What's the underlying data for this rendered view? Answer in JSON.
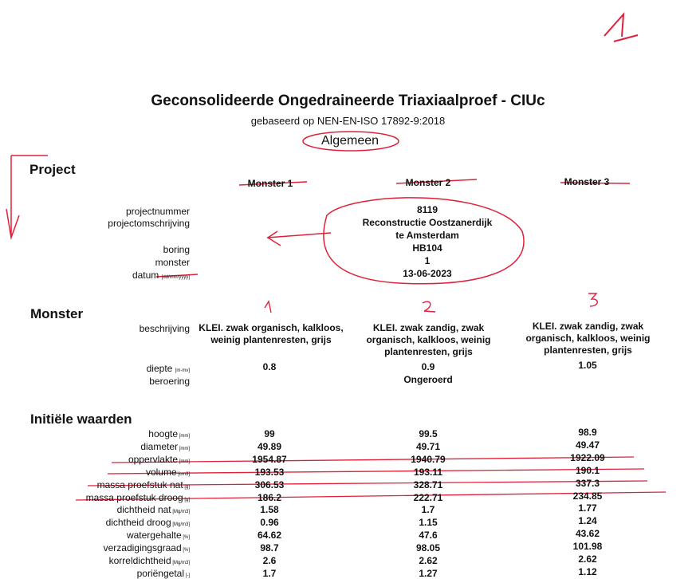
{
  "page_number_handwritten": "1",
  "title": "Geconsolideerde Ongedraineerde Triaxiaalproef - CIUc",
  "subtitle": "gebaseerd op NEN-EN-ISO 17892-9:2018",
  "section_label": "Algemeen",
  "project": {
    "heading": "Project",
    "columns": [
      "Monster 1",
      "Monster 2",
      "Monster 3"
    ],
    "labels": {
      "projectnummer": "projectnummer",
      "projectomschrijving": "projectomschrijving",
      "boring": "boring",
      "monster": "monster",
      "datum": "datum",
      "datum_unit": "[dd/mm/yyyy]"
    },
    "values": {
      "projectnummer": "8119",
      "omschrijving_1": "Reconstructie Oostzanerdijk",
      "omschrijving_2": "te Amsterdam",
      "boring": "HB104",
      "monster": "1",
      "datum": "13-06-2023"
    }
  },
  "monster": {
    "heading": "Monster",
    "handwritten_numbers": [
      "1",
      "2",
      "3"
    ],
    "labels": {
      "beschrijving": "beschrijving",
      "diepte": "diepte",
      "diepte_unit": "[m-mv]",
      "beroering": "beroering"
    },
    "descriptions": [
      "KLEI. zwak organisch, kalkloos, weinig plantenresten, grijs",
      "KLEI. zwak zandig, zwak organisch, kalkloos, weinig plantenresten, grijs",
      "KLEI. zwak zandig, zwak organisch, kalkloos, weinig plantenresten, grijs"
    ],
    "diepte": [
      "0.8",
      "0.9",
      "1.05"
    ],
    "beroering": "Ongeroerd"
  },
  "initiele": {
    "heading": "Initiële waarden",
    "rows": [
      {
        "label": "hoogte",
        "unit": "[mm]",
        "values": [
          "99",
          "99.5",
          "98.9"
        ]
      },
      {
        "label": "diameter",
        "unit": "[mm]",
        "values": [
          "49.89",
          "49.71",
          "49.47"
        ]
      },
      {
        "label": "oppervlakte",
        "unit": "[mm]",
        "values": [
          "1954.87",
          "1940.79",
          "1922.09"
        ]
      },
      {
        "label": "volume",
        "unit": "[cm3]",
        "values": [
          "193.53",
          "193.11",
          "190.1"
        ]
      },
      {
        "label": "massa proefstuk nat",
        "unit": "[g]",
        "values": [
          "306.53",
          "328.71",
          "337.3"
        ]
      },
      {
        "label": "massa proefstuk droog",
        "unit": "[g]",
        "values": [
          "186.2",
          "222.71",
          "234.85"
        ]
      },
      {
        "label": "dichtheid nat",
        "unit": "[Mg/m3]",
        "values": [
          "1.58",
          "1.7",
          "1.77"
        ]
      },
      {
        "label": "dichtheid droog",
        "unit": "[Mg/m3]",
        "values": [
          "0.96",
          "1.15",
          "1.24"
        ]
      },
      {
        "label": "watergehalte",
        "unit": "[%]",
        "values": [
          "64.62",
          "47.6",
          "43.62"
        ]
      },
      {
        "label": "verzadigingsgraad",
        "unit": "[%]",
        "values": [
          "98.7",
          "98.05",
          "101.98"
        ]
      },
      {
        "label": "korreldichtheid",
        "unit": "[Mg/m3]",
        "values": [
          "2.6",
          "2.62",
          "2.62"
        ]
      },
      {
        "label": "poriëngetal",
        "unit": "[-]",
        "values": [
          "1.7",
          "1.27",
          "1.12"
        ]
      }
    ]
  },
  "colors": {
    "ink": "#111111",
    "red_pen": "#e0203a"
  }
}
